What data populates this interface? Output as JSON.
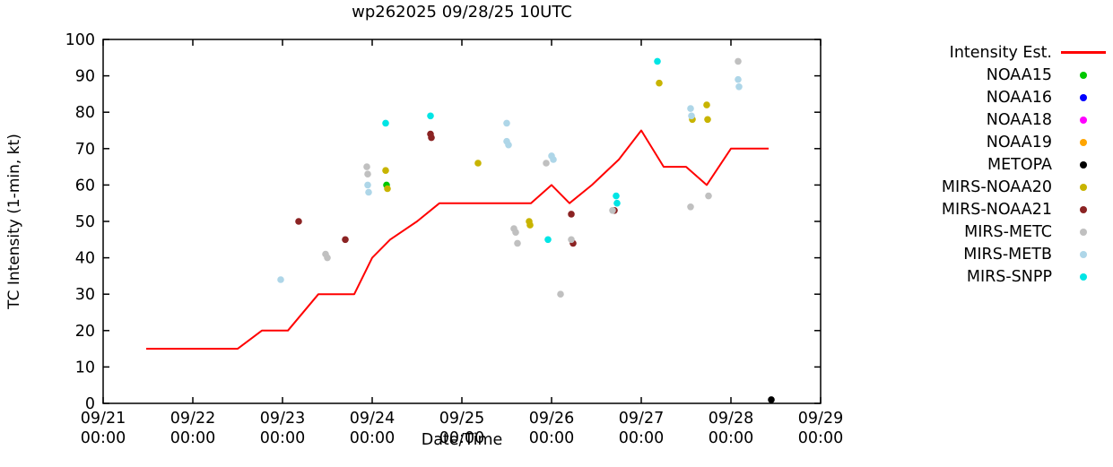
{
  "chart_data": {
    "type": "line+scatter",
    "title": "wp262025 09/28/25 10UTC",
    "xlabel": "Date/Time",
    "ylabel": "TC Intensity (1-min, kt)",
    "grid": false,
    "legend_position": "right-outside",
    "x_axis": {
      "unit": "days since 09/21 00:00",
      "range": [
        0,
        8
      ],
      "ticks": [
        {
          "pos": 0,
          "line1": "09/21",
          "line2": "00:00"
        },
        {
          "pos": 1,
          "line1": "09/22",
          "line2": "00:00"
        },
        {
          "pos": 2,
          "line1": "09/23",
          "line2": "00:00"
        },
        {
          "pos": 3,
          "line1": "09/24",
          "line2": "00:00"
        },
        {
          "pos": 4,
          "line1": "09/25",
          "line2": "00:00"
        },
        {
          "pos": 5,
          "line1": "09/26",
          "line2": "00:00"
        },
        {
          "pos": 6,
          "line1": "09/27",
          "line2": "00:00"
        },
        {
          "pos": 7,
          "line1": "09/28",
          "line2": "00:00"
        },
        {
          "pos": 8,
          "line1": "09/29",
          "line2": "00:00"
        }
      ]
    },
    "y_axis": {
      "range": [
        0,
        100
      ],
      "ticks": [
        0,
        10,
        20,
        30,
        40,
        50,
        60,
        70,
        80,
        90,
        100
      ]
    },
    "series": [
      {
        "name": "Intensity Est.",
        "type": "line",
        "color": "#ff0000",
        "points": [
          [
            0.48,
            15
          ],
          [
            1.5,
            15
          ],
          [
            1.77,
            20
          ],
          [
            2.06,
            20
          ],
          [
            2.4,
            30
          ],
          [
            2.8,
            30
          ],
          [
            3.0,
            40
          ],
          [
            3.2,
            45
          ],
          [
            3.5,
            50
          ],
          [
            3.75,
            55
          ],
          [
            4.77,
            55
          ],
          [
            5.0,
            60
          ],
          [
            5.2,
            55
          ],
          [
            5.45,
            60
          ],
          [
            5.75,
            67
          ],
          [
            6.0,
            75
          ],
          [
            6.25,
            65
          ],
          [
            6.5,
            65
          ],
          [
            6.73,
            60
          ],
          [
            7.0,
            70
          ],
          [
            7.42,
            70
          ]
        ]
      },
      {
        "name": "NOAA15",
        "type": "scatter",
        "color": "#00c800",
        "points": [
          [
            3.16,
            60
          ]
        ]
      },
      {
        "name": "NOAA16",
        "type": "scatter",
        "color": "#0000ff",
        "points": []
      },
      {
        "name": "NOAA18",
        "type": "scatter",
        "color": "#ff00ff",
        "points": []
      },
      {
        "name": "NOAA19",
        "type": "scatter",
        "color": "#ffa500",
        "points": []
      },
      {
        "name": "METOPA",
        "type": "scatter",
        "color": "#000000",
        "points": [
          [
            7.45,
            1
          ]
        ]
      },
      {
        "name": "MIRS-NOAA20",
        "type": "scatter",
        "color": "#c8b400",
        "points": [
          [
            3.15,
            64
          ],
          [
            3.17,
            59
          ],
          [
            4.18,
            66
          ],
          [
            4.75,
            50
          ],
          [
            4.76,
            49
          ],
          [
            6.2,
            88
          ],
          [
            6.57,
            78
          ],
          [
            6.73,
            82
          ],
          [
            6.74,
            78
          ]
        ]
      },
      {
        "name": "MIRS-NOAA21",
        "type": "scatter",
        "color": "#8b2323",
        "points": [
          [
            2.18,
            50
          ],
          [
            2.7,
            45
          ],
          [
            3.65,
            74
          ],
          [
            3.66,
            73
          ],
          [
            5.22,
            52
          ],
          [
            5.24,
            44
          ],
          [
            5.7,
            53
          ]
        ]
      },
      {
        "name": "MIRS-METC",
        "type": "scatter",
        "color": "#c0c0c0",
        "points": [
          [
            2.48,
            41
          ],
          [
            2.5,
            40
          ],
          [
            2.94,
            65
          ],
          [
            2.95,
            63
          ],
          [
            4.58,
            48
          ],
          [
            4.6,
            47
          ],
          [
            4.62,
            44
          ],
          [
            4.94,
            66
          ],
          [
            5.1,
            30
          ],
          [
            5.22,
            45
          ],
          [
            5.68,
            53
          ],
          [
            6.55,
            54
          ],
          [
            6.75,
            57
          ],
          [
            7.08,
            94
          ]
        ]
      },
      {
        "name": "MIRS-METB",
        "type": "scatter",
        "color": "#aed6e8",
        "points": [
          [
            1.98,
            34
          ],
          [
            2.95,
            60
          ],
          [
            2.96,
            58
          ],
          [
            4.5,
            77
          ],
          [
            4.5,
            72
          ],
          [
            4.52,
            71
          ],
          [
            5.0,
            68
          ],
          [
            5.02,
            67
          ],
          [
            6.55,
            81
          ],
          [
            6.56,
            79
          ],
          [
            7.08,
            89
          ],
          [
            7.09,
            87
          ]
        ]
      },
      {
        "name": "MIRS-SNPP",
        "type": "scatter",
        "color": "#00e5e5",
        "points": [
          [
            3.15,
            77
          ],
          [
            3.65,
            79
          ],
          [
            4.96,
            45
          ],
          [
            5.72,
            57
          ],
          [
            5.73,
            55
          ],
          [
            6.18,
            94
          ]
        ]
      }
    ]
  }
}
